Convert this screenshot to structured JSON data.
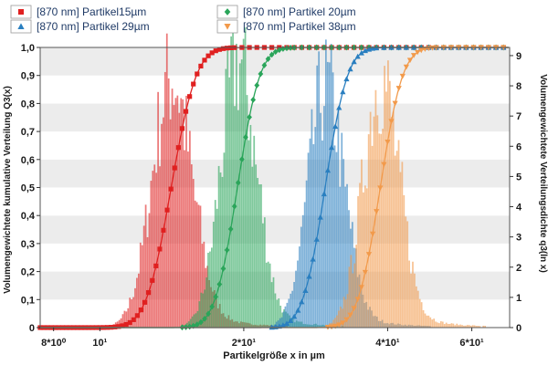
{
  "chart_data": {
    "type": "histogram+line",
    "title": "",
    "xlabel": "Partikelgröße x in µm",
    "ylabel_left": "Volumengewichtete kumulative Verteilung Q3(x)",
    "ylabel_right": "Volumengewichtete Verteilungsdichte q3(ln x)",
    "x_scale": "log",
    "xlim": [
      7.5,
      72
    ],
    "ylim_left": [
      0,
      1.0
    ],
    "ylim_right": [
      0,
      9.27
    ],
    "x_ticks": [
      {
        "value": 8,
        "label": "8*10⁰"
      },
      {
        "value": 10,
        "label": "10¹"
      },
      {
        "value": 20,
        "label": "2*10¹"
      },
      {
        "value": 40,
        "label": "4*10¹"
      },
      {
        "value": 60,
        "label": "6*10¹"
      }
    ],
    "y_ticks_left": [
      "0",
      "0,1",
      "0,2",
      "0,3",
      "0,4",
      "0,5",
      "0,6",
      "0,7",
      "0,8",
      "0,9",
      "1,0"
    ],
    "y_ticks_right": [
      "0",
      "1",
      "2",
      "3",
      "4",
      "5",
      "6",
      "7",
      "8",
      "9"
    ],
    "series": [
      {
        "name": "[870 nm] Partikel15µm",
        "color": "#e02020",
        "marker": "square",
        "median": 14.1,
        "sigma": 0.095,
        "peak_q3": 8.3,
        "legend_row": 0,
        "legend_col": 0
      },
      {
        "name": "[870 nm] Partikel 20µm",
        "color": "#2aa55a",
        "marker": "diamond",
        "median": 19.4,
        "sigma": 0.085,
        "peak_q3": 8.8,
        "legend_row": 0,
        "legend_col": 1
      },
      {
        "name": "[870 nm] Partikel 29µm",
        "color": "#2a7fc0",
        "marker": "triangle-up",
        "median": 29.6,
        "sigma": 0.085,
        "peak_q3": 8.0,
        "legend_row": 1,
        "legend_col": 0
      },
      {
        "name": "[870 nm] Partikel 38µm",
        "color": "#f29a4b",
        "marker": "triangle-down",
        "median": 38.6,
        "sigma": 0.085,
        "peak_q3": 8.3,
        "legend_row": 1,
        "legend_col": 1
      }
    ]
  }
}
